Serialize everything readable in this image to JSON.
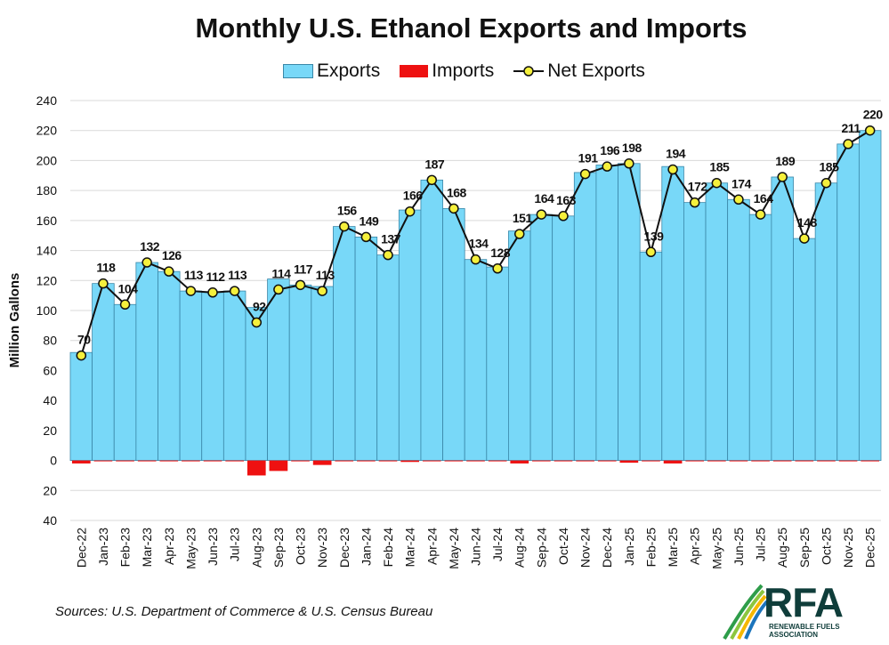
{
  "chart_data": {
    "type": "bar",
    "title": "Monthly U.S. Ethanol Exports and Imports",
    "ylabel": "Million Gallons",
    "ylim": [
      -40,
      240
    ],
    "yticks": [
      {
        "value": 240,
        "label": "240"
      },
      {
        "value": 220,
        "label": "220"
      },
      {
        "value": 200,
        "label": "200"
      },
      {
        "value": 180,
        "label": "180"
      },
      {
        "value": 160,
        "label": "160"
      },
      {
        "value": 140,
        "label": "140"
      },
      {
        "value": 120,
        "label": "120"
      },
      {
        "value": 100,
        "label": "100"
      },
      {
        "value": 80,
        "label": "80"
      },
      {
        "value": 60,
        "label": "60"
      },
      {
        "value": 40,
        "label": "40"
      },
      {
        "value": 20,
        "label": "20"
      },
      {
        "value": 0,
        "label": "0"
      },
      {
        "value": -20,
        "label": "20"
      },
      {
        "value": -40,
        "label": "40"
      }
    ],
    "grid": true,
    "legend_position": "top-center",
    "categories": [
      "Dec-22",
      "Jan-23",
      "Feb-23",
      "Mar-23",
      "Apr-23",
      "May-23",
      "Jun-23",
      "Jul-23",
      "Aug-23",
      "Sep-23",
      "Oct-23",
      "Nov-23",
      "Dec-23",
      "Jan-24",
      "Feb-24",
      "Mar-24",
      "Apr-24",
      "May-24",
      "Jun-24",
      "Jul-24",
      "Aug-24",
      "Sep-24",
      "Oct-24",
      "Nov-24",
      "Dec-24",
      "Jan-25",
      "Feb-25",
      "Mar-25",
      "Apr-25",
      "May-25",
      "Jun-25",
      "Jul-25",
      "Aug-25",
      "Sep-25",
      "Oct-25",
      "Nov-25",
      "Dec-25"
    ],
    "series": [
      {
        "name": "Exports",
        "color": "#78d8f8",
        "values": [
          72,
          118,
          104,
          132,
          126,
          113,
          112,
          113,
          102,
          121,
          117,
          116,
          156,
          149,
          137,
          167,
          187,
          168,
          134,
          129,
          153,
          164,
          163,
          192,
          197,
          198,
          139,
          196,
          172,
          185,
          174,
          164,
          189,
          148,
          185,
          211,
          220
        ]
      },
      {
        "name": "Imports",
        "color": "#ee1111",
        "values": [
          -2,
          -0.5,
          -0.5,
          -0.5,
          -0.5,
          -0.5,
          -0.5,
          -0.5,
          -10,
          -7,
          -0.5,
          -3,
          -0.5,
          -0.5,
          -0.5,
          -1,
          -0.5,
          -0.5,
          -0.5,
          -0.5,
          -2,
          -0.5,
          -0.5,
          -0.5,
          -0.5,
          -1.5,
          -0.5,
          -2,
          -0.5,
          -0.5,
          -0.5,
          -0.5,
          -0.5,
          -0.5,
          -0.5,
          -0.5,
          -0.5
        ]
      },
      {
        "name": "Net Exports",
        "color": "#111111",
        "marker_color": "#f5f03c",
        "values": [
          70,
          118,
          104,
          132,
          126,
          113,
          112,
          113,
          92,
          114,
          117,
          113,
          156,
          149,
          137,
          166,
          187,
          168,
          134,
          128,
          151,
          164,
          163,
          191,
          196,
          198,
          139,
          194,
          172,
          185,
          174,
          164,
          189,
          148,
          185,
          211,
          220
        ]
      }
    ]
  },
  "legend": {
    "exports_label": "Exports",
    "imports_label": "Imports",
    "net_label": "Net Exports"
  },
  "source": "Sources: U.S. Department of Commerce & U.S. Census Bureau",
  "logo": {
    "text": "RFA",
    "subtitle_line1": "RENEWABLE FUELS",
    "subtitle_line2": "ASSOCIATION",
    "color": "#0f3d3a"
  }
}
